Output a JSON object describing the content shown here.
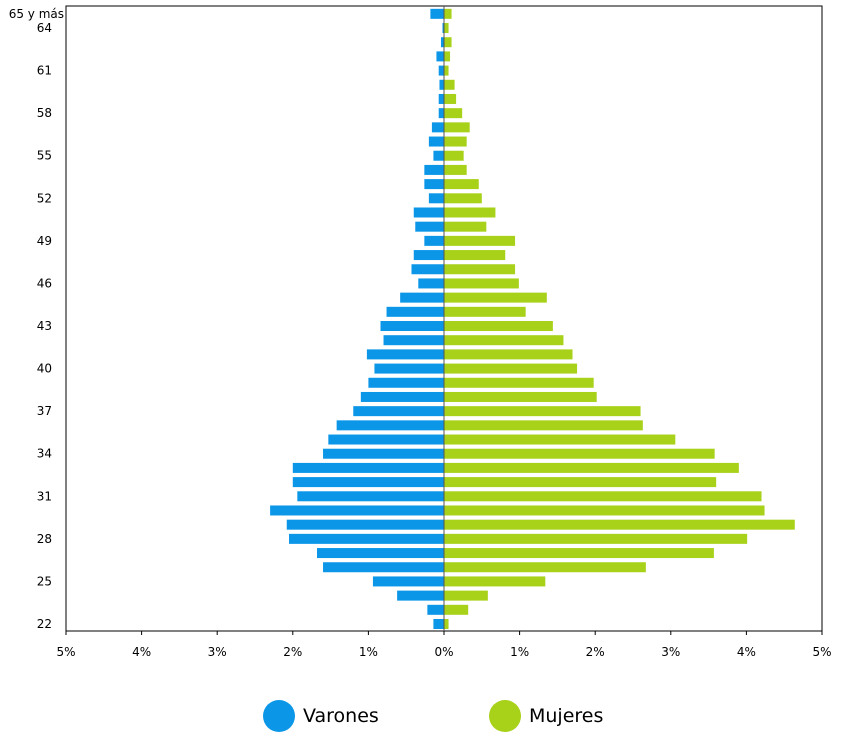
{
  "chart_data": {
    "type": "bar",
    "orientation": "horizontal",
    "layout": "population-pyramid",
    "categories": [
      "22",
      "23",
      "24",
      "25",
      "26",
      "27",
      "28",
      "29",
      "30",
      "31",
      "32",
      "33",
      "34",
      "35",
      "36",
      "37",
      "38",
      "39",
      "40",
      "41",
      "42",
      "43",
      "44",
      "45",
      "46",
      "47",
      "48",
      "49",
      "50",
      "51",
      "52",
      "53",
      "54",
      "55",
      "56",
      "57",
      "58",
      "59",
      "60",
      "61",
      "62",
      "63",
      "64",
      "65 y más"
    ],
    "y_tick_labels": [
      "22",
      "25",
      "28",
      "31",
      "34",
      "37",
      "40",
      "43",
      "46",
      "49",
      "52",
      "55",
      "58",
      "61",
      "64",
      "65 y más"
    ],
    "x_tick_labels": [
      "5%",
      "4%",
      "3%",
      "2%",
      "1%",
      "0%",
      "1%",
      "2%",
      "3%",
      "4%",
      "5%"
    ],
    "xlim": [
      -5,
      5
    ],
    "series": [
      {
        "name": "Varones",
        "color": "#0b96e8",
        "side": "left",
        "values": [
          0.14,
          0.22,
          0.62,
          0.94,
          1.6,
          1.68,
          2.05,
          2.08,
          2.3,
          1.94,
          2.0,
          2.0,
          1.6,
          1.53,
          1.42,
          1.2,
          1.1,
          1.0,
          0.92,
          1.02,
          0.8,
          0.84,
          0.76,
          0.58,
          0.34,
          0.43,
          0.4,
          0.26,
          0.38,
          0.4,
          0.2,
          0.26,
          0.26,
          0.14,
          0.2,
          0.16,
          0.07,
          0.07,
          0.06,
          0.07,
          0.1,
          0.04,
          0.02,
          0.18
        ]
      },
      {
        "name": "Mujeres",
        "color": "#a8d11a",
        "side": "right",
        "values": [
          0.06,
          0.32,
          0.58,
          1.34,
          2.67,
          3.57,
          4.01,
          4.64,
          4.24,
          4.2,
          3.6,
          3.9,
          3.58,
          3.06,
          2.63,
          2.6,
          2.02,
          1.98,
          1.76,
          1.7,
          1.58,
          1.44,
          1.08,
          1.36,
          0.99,
          0.94,
          0.81,
          0.94,
          0.56,
          0.68,
          0.5,
          0.46,
          0.3,
          0.26,
          0.3,
          0.34,
          0.24,
          0.16,
          0.14,
          0.06,
          0.08,
          0.1,
          0.06,
          0.1
        ]
      }
    ],
    "grid": false,
    "legend_position": "bottom-center"
  }
}
